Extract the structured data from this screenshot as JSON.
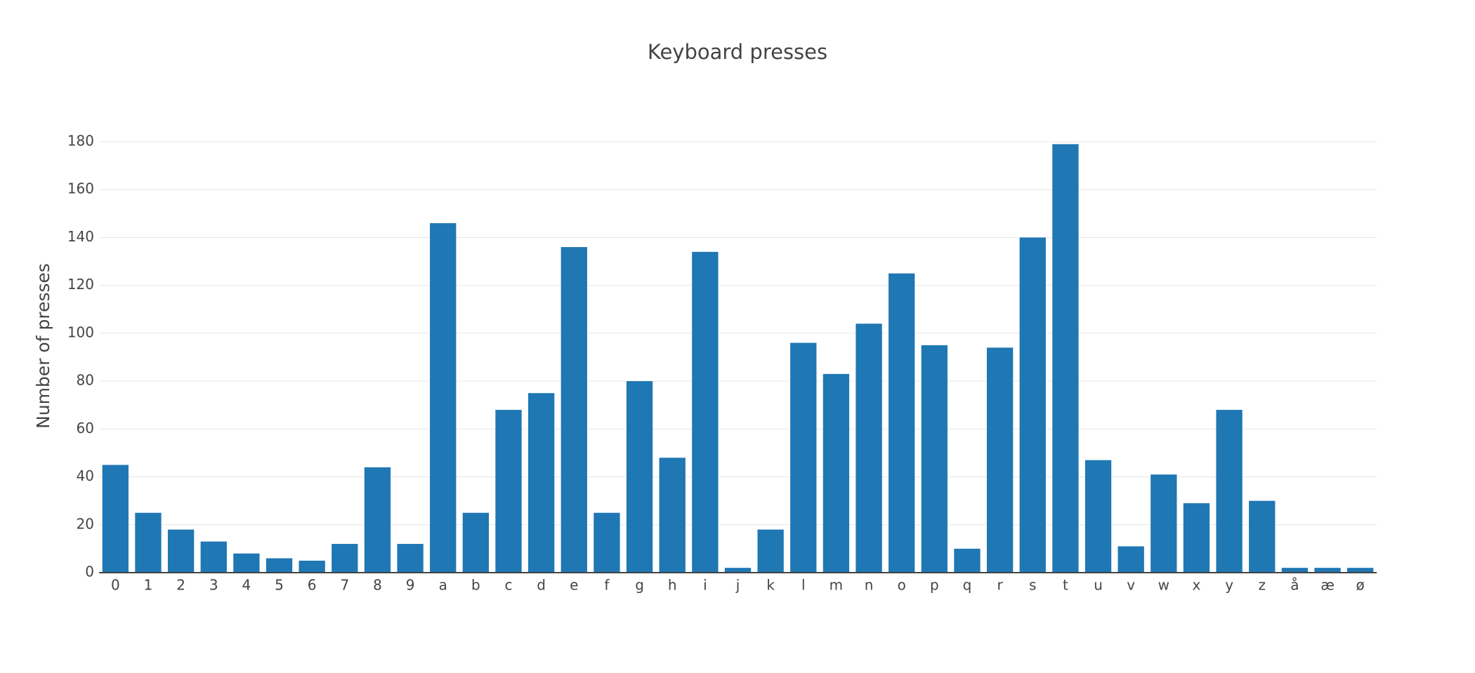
{
  "chart_data": {
    "type": "bar",
    "title": "Keyboard presses",
    "y_label": "Number of presses",
    "categories": [
      "0",
      "1",
      "2",
      "3",
      "4",
      "5",
      "6",
      "7",
      "8",
      "9",
      "a",
      "b",
      "c",
      "d",
      "e",
      "f",
      "g",
      "h",
      "i",
      "j",
      "k",
      "l",
      "m",
      "n",
      "o",
      "p",
      "q",
      "r",
      "s",
      "t",
      "u",
      "v",
      "w",
      "x",
      "y",
      "z",
      "å",
      "æ",
      "ø"
    ],
    "values": [
      45,
      25,
      18,
      13,
      8,
      6,
      5,
      12,
      44,
      12,
      146,
      25,
      68,
      75,
      136,
      25,
      80,
      48,
      134,
      2,
      18,
      96,
      83,
      104,
      125,
      95,
      10,
      94,
      140,
      179,
      47,
      11,
      41,
      29,
      68,
      30,
      2,
      2,
      2
    ],
    "color": "#1f77b4",
    "ylim": [
      0,
      180
    ],
    "yticks": [
      0,
      20,
      40,
      60,
      80,
      100,
      120,
      140,
      160,
      180
    ],
    "grid": true
  }
}
